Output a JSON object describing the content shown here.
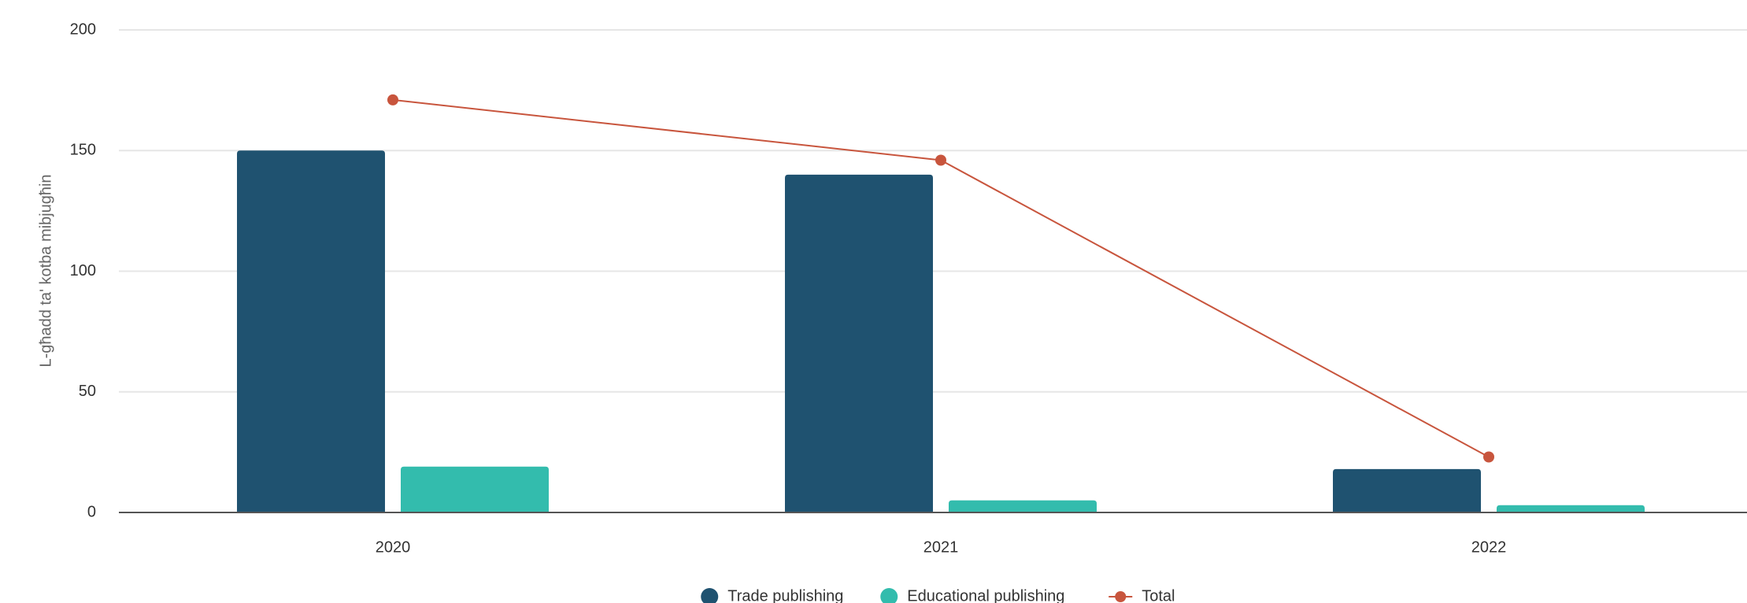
{
  "chart_data": {
    "type": "bar",
    "y_axis_label": "L-għadd ta' kotba mibjugħin",
    "categories": [
      "2020",
      "2021",
      "2022"
    ],
    "series": [
      {
        "name": "Trade publishing",
        "type": "bar",
        "color": "#1f5270",
        "values": [
          150,
          140,
          18
        ]
      },
      {
        "name": "Educational publishing",
        "type": "bar",
        "color": "#33bcad",
        "values": [
          19,
          5,
          3
        ]
      },
      {
        "name": "Total",
        "type": "line",
        "color": "#c8553d",
        "values": [
          171,
          146,
          23
        ]
      }
    ],
    "ylim": [
      0,
      200
    ],
    "yticks": [
      0,
      50,
      100,
      150,
      200
    ],
    "grid": true
  }
}
